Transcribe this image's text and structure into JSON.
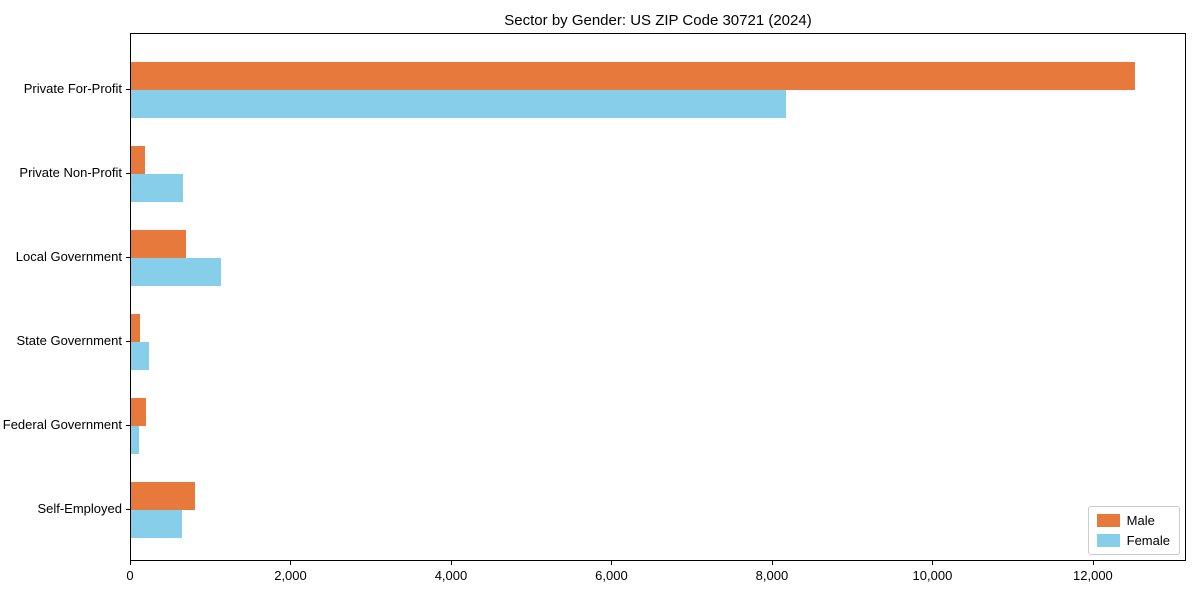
{
  "chart_data": {
    "type": "bar",
    "orientation": "horizontal",
    "title": "Sector by Gender: US ZIP Code 30721 (2024)",
    "categories": [
      "Private For-Profit",
      "Private Non-Profit",
      "Local Government",
      "State Government",
      "Federal Government",
      "Self-Employed"
    ],
    "series": [
      {
        "name": "Male",
        "color": "#E8793C",
        "values": [
          12530,
          175,
          685,
          115,
          185,
          800
        ]
      },
      {
        "name": "Female",
        "color": "#87CEEB",
        "values": [
          8180,
          650,
          1120,
          220,
          95,
          635
        ]
      }
    ],
    "xlabel": "",
    "ylabel": "",
    "xlim": [
      0,
      13160
    ],
    "x_ticks": [
      0,
      2000,
      4000,
      6000,
      8000,
      10000,
      12000
    ],
    "x_tick_labels": [
      "0",
      "2,000",
      "4,000",
      "6,000",
      "8,000",
      "10,000",
      "12,000"
    ],
    "grid": false,
    "legend_position": "lower right",
    "axis_color": "#000000",
    "legend_border_color": "#cccccc"
  }
}
